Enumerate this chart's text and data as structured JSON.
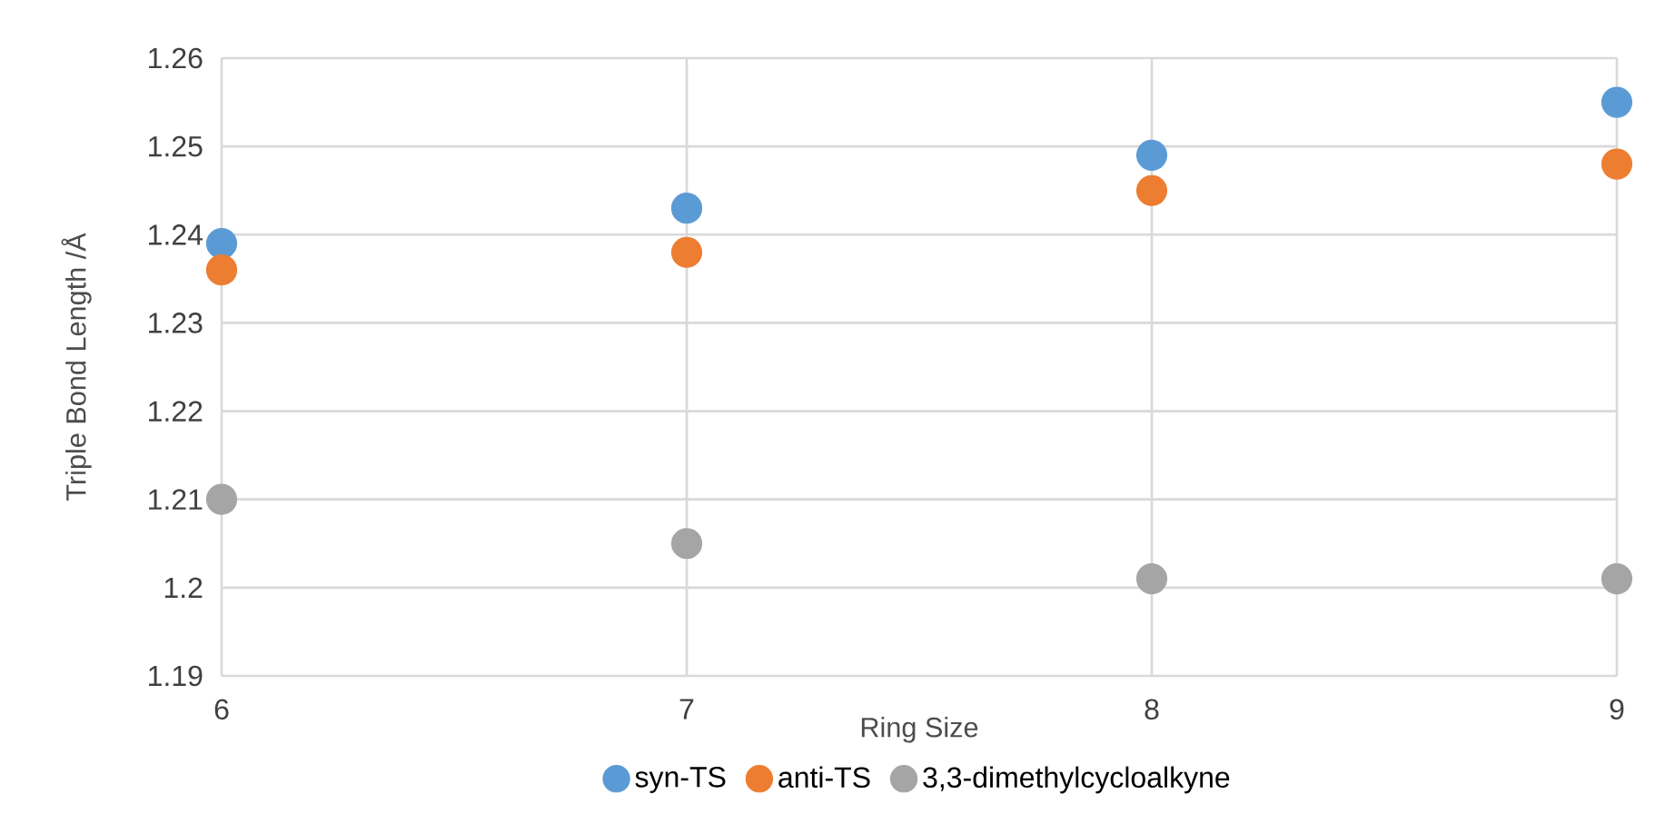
{
  "chart_data": {
    "type": "scatter",
    "xlabel": "Ring Size",
    "ylabel": "Triple Bond Length /Å",
    "x": [
      6,
      7,
      8,
      9
    ],
    "series": [
      {
        "name": "syn-TS",
        "color": "#5b9bd5",
        "values": [
          1.239,
          1.243,
          1.249,
          1.255
        ]
      },
      {
        "name": "anti-TS",
        "color": "#ed7d31",
        "values": [
          1.236,
          1.238,
          1.245,
          1.248
        ]
      },
      {
        "name": "3,3-dimethylcycloalkyne",
        "color": "#a5a5a5",
        "values": [
          1.21,
          1.205,
          1.201,
          1.201
        ]
      }
    ],
    "xlim": [
      6,
      9
    ],
    "xticks": [
      6,
      7,
      8,
      9
    ],
    "ylim": [
      1.19,
      1.26
    ],
    "yticks": [
      1.19,
      1.2,
      1.21,
      1.22,
      1.23,
      1.24,
      1.25,
      1.26
    ],
    "grid": true,
    "legend": "bottom",
    "marker": "circle"
  }
}
